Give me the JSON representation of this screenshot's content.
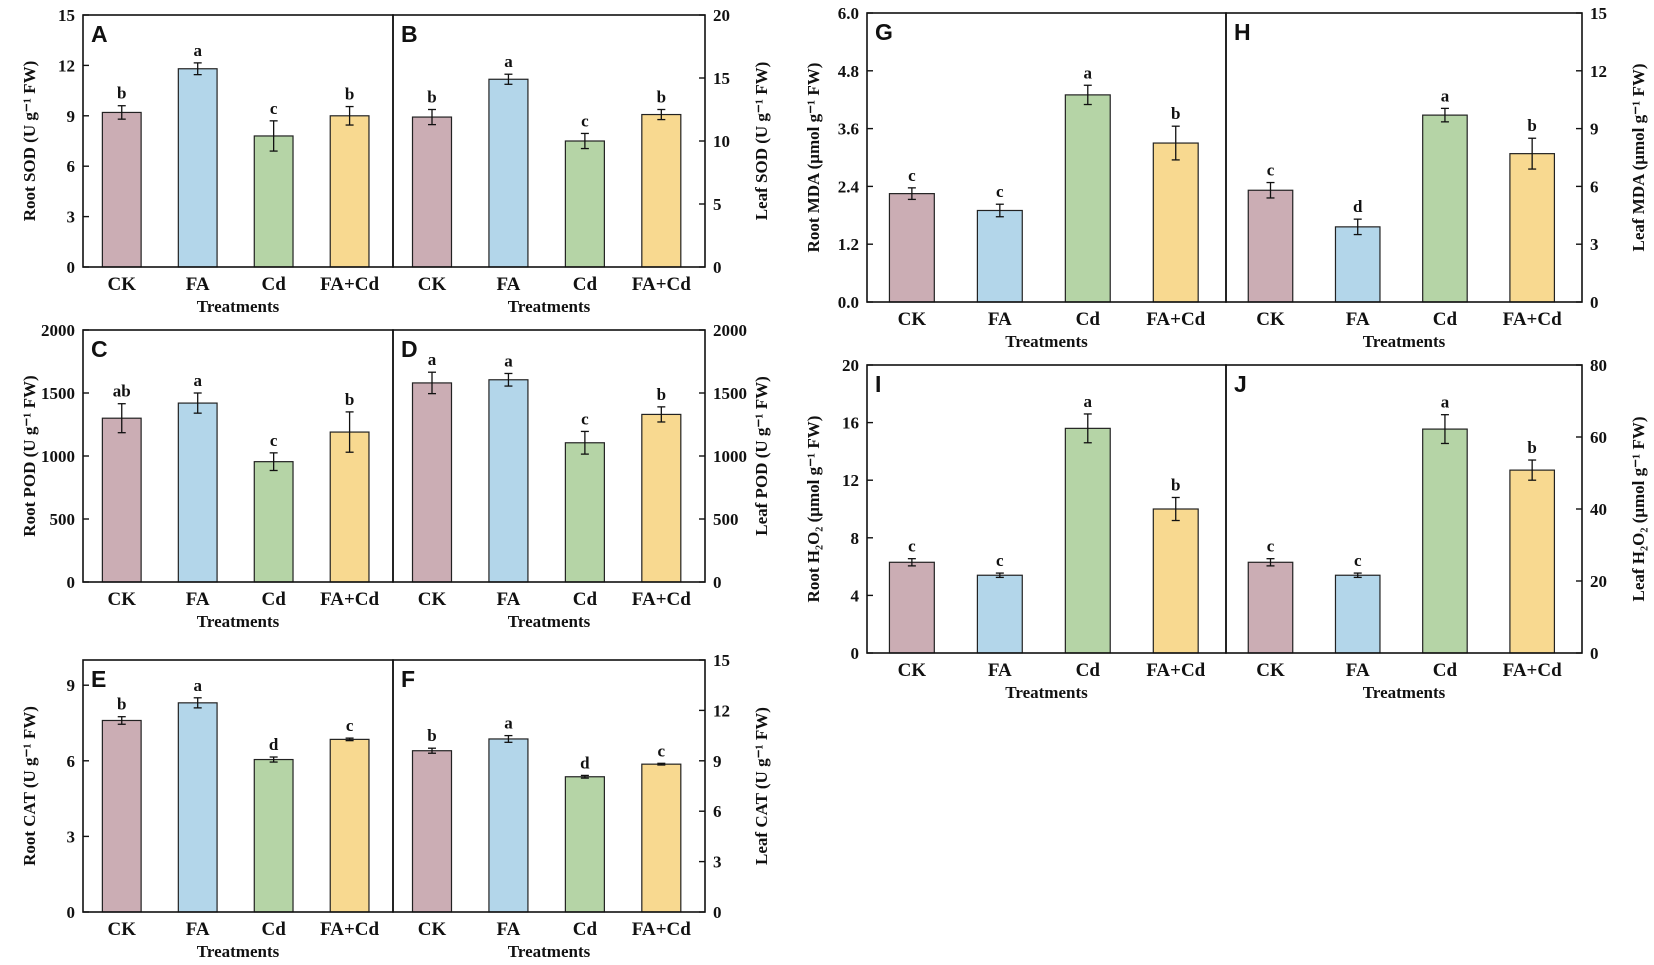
{
  "figure": {
    "colors": {
      "CK": "#cbadb4",
      "FA": "#b3d6ea",
      "Cd": "#b5d4a6",
      "FA+Cd": "#f8d990"
    }
  },
  "chart_data": [
    {
      "id": "A",
      "type": "bar",
      "categories": [
        "CK",
        "FA",
        "Cd",
        "FA+Cd"
      ],
      "values": [
        9.2,
        11.8,
        7.8,
        9.0
      ],
      "errors": [
        0.4,
        0.35,
        0.9,
        0.55
      ],
      "letters": [
        "b",
        "a",
        "c",
        "b"
      ],
      "ylabel": "Root SOD (U g⁻¹ FW)",
      "xlabel": "Treatments",
      "ylim": [
        0,
        15
      ],
      "ticks": [
        0,
        3,
        6,
        9,
        12,
        15
      ],
      "tick_labels": [
        "0",
        "3",
        "6",
        "9",
        "12",
        "15"
      ],
      "axis_side": "left"
    },
    {
      "id": "B",
      "type": "bar",
      "categories": [
        "CK",
        "FA",
        "Cd",
        "FA+Cd"
      ],
      "values": [
        11.9,
        14.9,
        10.0,
        12.1
      ],
      "errors": [
        0.6,
        0.4,
        0.6,
        0.4
      ],
      "letters": [
        "b",
        "a",
        "c",
        "b"
      ],
      "ylabel": "Leaf SOD (U g⁻¹ FW)",
      "xlabel": "Treatments",
      "ylim": [
        0,
        20
      ],
      "ticks": [
        0,
        5,
        10,
        15,
        20
      ],
      "tick_labels": [
        "0",
        "5",
        "10",
        "15",
        "20"
      ],
      "axis_side": "right"
    },
    {
      "id": "C",
      "type": "bar",
      "categories": [
        "CK",
        "FA",
        "Cd",
        "FA+Cd"
      ],
      "values": [
        1300,
        1420,
        955,
        1190
      ],
      "errors": [
        115,
        80,
        70,
        160
      ],
      "letters": [
        "ab",
        "a",
        "c",
        "b"
      ],
      "ylabel": "Root POD (U g⁻¹ FW)",
      "xlabel": "Treatments",
      "ylim": [
        0,
        2000
      ],
      "ticks": [
        0,
        500,
        1000,
        1500,
        2000
      ],
      "tick_labels": [
        "0",
        "500",
        "1000",
        "1500",
        "2000"
      ],
      "axis_side": "left"
    },
    {
      "id": "D",
      "type": "bar",
      "categories": [
        "CK",
        "FA",
        "Cd",
        "FA+Cd"
      ],
      "values": [
        1580,
        1605,
        1105,
        1330
      ],
      "errors": [
        85,
        50,
        90,
        60
      ],
      "letters": [
        "a",
        "a",
        "c",
        "b"
      ],
      "ylabel": "Leaf POD (U g⁻¹ FW)",
      "xlabel": "Treatments",
      "ylim": [
        0,
        2000
      ],
      "ticks": [
        0,
        500,
        1000,
        1500,
        2000
      ],
      "tick_labels": [
        "0",
        "500",
        "1000",
        "1500",
        "2000"
      ],
      "axis_side": "right"
    },
    {
      "id": "E",
      "type": "bar",
      "categories": [
        "CK",
        "FA",
        "Cd",
        "FA+Cd"
      ],
      "values": [
        7.6,
        8.3,
        6.05,
        6.85
      ],
      "errors": [
        0.15,
        0.2,
        0.1,
        0.05
      ],
      "letters": [
        "b",
        "a",
        "d",
        "c"
      ],
      "ylabel": "Root CAT (U g⁻¹ FW)",
      "xlabel": "Treatments",
      "ylim": [
        0,
        10
      ],
      "ticks": [
        0,
        3,
        6,
        9
      ],
      "tick_labels": [
        "0",
        "3",
        "6",
        "9"
      ],
      "axis_side": "left"
    },
    {
      "id": "F",
      "type": "bar",
      "categories": [
        "CK",
        "FA",
        "Cd",
        "FA+Cd"
      ],
      "values": [
        9.6,
        10.3,
        8.05,
        8.8
      ],
      "errors": [
        0.15,
        0.2,
        0.08,
        0.05
      ],
      "letters": [
        "b",
        "a",
        "d",
        "c"
      ],
      "ylabel": "Leaf CAT (U g⁻¹ FW)",
      "xlabel": "Treatments",
      "ylim": [
        0,
        15
      ],
      "ticks": [
        0,
        3,
        6,
        9,
        12,
        15
      ],
      "tick_labels": [
        "0",
        "3",
        "6",
        "9",
        "12",
        "15"
      ],
      "axis_side": "right"
    },
    {
      "id": "G",
      "type": "bar",
      "categories": [
        "CK",
        "FA",
        "Cd",
        "FA+Cd"
      ],
      "values": [
        2.25,
        1.9,
        4.3,
        3.3
      ],
      "errors": [
        0.12,
        0.13,
        0.2,
        0.35
      ],
      "letters": [
        "c",
        "c",
        "a",
        "b"
      ],
      "ylabel": "Root MDA (μmol g⁻¹ FW)",
      "xlabel": "Treatments",
      "ylim": [
        0,
        6
      ],
      "ticks": [
        0,
        1.2,
        2.4,
        3.6,
        4.8,
        6
      ],
      "tick_labels": [
        "0.0",
        "1.2",
        "2.4",
        "3.6",
        "4.8",
        "6.0"
      ],
      "axis_side": "left"
    },
    {
      "id": "H",
      "type": "bar",
      "categories": [
        "CK",
        "FA",
        "Cd",
        "FA+Cd"
      ],
      "values": [
        5.8,
        3.9,
        9.7,
        7.7
      ],
      "errors": [
        0.4,
        0.4,
        0.35,
        0.8
      ],
      "letters": [
        "c",
        "d",
        "a",
        "b"
      ],
      "ylabel": "Leaf MDA (μmol g⁻¹ FW)",
      "xlabel": "Treatments",
      "ylim": [
        0,
        15
      ],
      "ticks": [
        0,
        3,
        6,
        9,
        12,
        15
      ],
      "tick_labels": [
        "0",
        "3",
        "6",
        "9",
        "12",
        "15"
      ],
      "axis_side": "right"
    },
    {
      "id": "I",
      "type": "bar",
      "categories": [
        "CK",
        "FA",
        "Cd",
        "FA+Cd"
      ],
      "values": [
        6.3,
        5.4,
        15.6,
        10.0
      ],
      "errors": [
        0.25,
        0.15,
        1.0,
        0.8
      ],
      "letters": [
        "c",
        "c",
        "a",
        "b"
      ],
      "ylabel": "Root H₂O₂ (μmol g⁻¹ FW)",
      "xlabel": "Treatments",
      "ylim": [
        0,
        20
      ],
      "ticks": [
        0,
        4,
        8,
        12,
        16,
        20
      ],
      "tick_labels": [
        "0",
        "4",
        "8",
        "12",
        "16",
        "20"
      ],
      "axis_side": "left"
    },
    {
      "id": "J",
      "type": "bar",
      "categories": [
        "CK",
        "FA",
        "Cd",
        "FA+Cd"
      ],
      "values": [
        25.2,
        21.6,
        62.2,
        50.8
      ],
      "errors": [
        1.0,
        0.6,
        4.0,
        2.8
      ],
      "letters": [
        "c",
        "c",
        "a",
        "b"
      ],
      "ylabel": "Leaf H₂O₂ (μmol g⁻¹ FW)",
      "xlabel": "Treatments",
      "ylim": [
        0,
        80
      ],
      "ticks": [
        0,
        20,
        40,
        60,
        80
      ],
      "tick_labels": [
        "0",
        "20",
        "40",
        "60",
        "80"
      ],
      "axis_side": "right"
    }
  ]
}
